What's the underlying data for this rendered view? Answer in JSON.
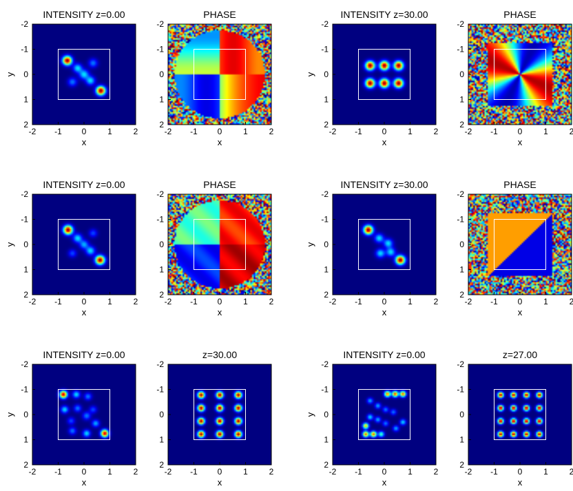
{
  "colors": {
    "background": "#000080",
    "colormap": "jet",
    "frame": "#ffffff",
    "axes": "#000000"
  },
  "chart_data": {
    "type": "heatmap",
    "axis_labels": {
      "x": "x",
      "y": "y"
    },
    "xlim": [
      -2,
      2
    ],
    "ylim": [
      -2,
      2
    ],
    "ticks": [
      "-2",
      "-1",
      "0",
      "1",
      "2"
    ],
    "rows": [
      {
        "panels": [
          {
            "kind": "intensity",
            "title": "INTENSITY z=0.00",
            "blobs": [
              {
                "x": -0.65,
                "y": -0.55,
                "amp": 1.0,
                "sigma": 0.12
              },
              {
                "x": -0.25,
                "y": -0.25,
                "amp": 0.35,
                "sigma": 0.12
              },
              {
                "x": 0.0,
                "y": 0.0,
                "amp": 0.35,
                "sigma": 0.13
              },
              {
                "x": 0.25,
                "y": 0.25,
                "amp": 0.35,
                "sigma": 0.12
              },
              {
                "x": -0.45,
                "y": 0.3,
                "amp": 0.25,
                "sigma": 0.12
              },
              {
                "x": 0.35,
                "y": -0.45,
                "amp": 0.25,
                "sigma": 0.12
              },
              {
                "x": 0.65,
                "y": 0.65,
                "amp": 1.0,
                "sigma": 0.12
              }
            ]
          },
          {
            "kind": "phase",
            "title": "PHASE",
            "style": "smooth-cross",
            "noise": "outer-corners"
          },
          {
            "kind": "intensity",
            "title": "INTENSITY z=30.00",
            "blobs": [
              {
                "x": -0.55,
                "y": -0.35,
                "amp": 1.0,
                "sigma": 0.12
              },
              {
                "x": 0.0,
                "y": -0.35,
                "amp": 1.0,
                "sigma": 0.12
              },
              {
                "x": 0.55,
                "y": -0.35,
                "amp": 1.0,
                "sigma": 0.12
              },
              {
                "x": -0.55,
                "y": 0.35,
                "amp": 1.0,
                "sigma": 0.12
              },
              {
                "x": 0.0,
                "y": 0.35,
                "amp": 1.0,
                "sigma": 0.12
              },
              {
                "x": 0.55,
                "y": 0.35,
                "amp": 1.0,
                "sigma": 0.12
              }
            ]
          },
          {
            "kind": "phase",
            "title": "PHASE",
            "style": "inner-square",
            "noise": "outside-square"
          }
        ]
      },
      {
        "panels": [
          {
            "kind": "intensity",
            "title": "INTENSITY z=0.00",
            "blobs": [
              {
                "x": -0.62,
                "y": -0.58,
                "amp": 1.0,
                "sigma": 0.12
              },
              {
                "x": -0.25,
                "y": -0.25,
                "amp": 0.35,
                "sigma": 0.12
              },
              {
                "x": 0.0,
                "y": 0.0,
                "amp": 0.3,
                "sigma": 0.12
              },
              {
                "x": 0.25,
                "y": 0.25,
                "amp": 0.35,
                "sigma": 0.12
              },
              {
                "x": -0.45,
                "y": 0.35,
                "amp": 0.2,
                "sigma": 0.11
              },
              {
                "x": 0.35,
                "y": -0.45,
                "amp": 0.2,
                "sigma": 0.11
              },
              {
                "x": 0.62,
                "y": 0.62,
                "amp": 1.0,
                "sigma": 0.12
              }
            ]
          },
          {
            "kind": "phase",
            "title": "PHASE",
            "style": "sharp-cross",
            "noise": "outer-corners"
          },
          {
            "kind": "intensity",
            "title": "INTENSITY z=30.00",
            "blobs": [
              {
                "x": -0.62,
                "y": -0.58,
                "amp": 1.0,
                "sigma": 0.12
              },
              {
                "x": -0.2,
                "y": -0.25,
                "amp": 0.35,
                "sigma": 0.12
              },
              {
                "x": 0.15,
                "y": -0.05,
                "amp": 0.35,
                "sigma": 0.12
              },
              {
                "x": -0.15,
                "y": 0.35,
                "amp": 0.35,
                "sigma": 0.12
              },
              {
                "x": 0.25,
                "y": 0.3,
                "amp": 0.35,
                "sigma": 0.12
              },
              {
                "x": 0.62,
                "y": 0.62,
                "amp": 1.0,
                "sigma": 0.12
              }
            ]
          },
          {
            "kind": "phase",
            "title": "PHASE",
            "style": "blue-yellow-square",
            "noise": "outside-square"
          }
        ]
      },
      {
        "panels": [
          {
            "kind": "intensity",
            "title": "INTENSITY z=0.00",
            "blobs": [
              {
                "x": -0.8,
                "y": -0.8,
                "amp": 0.95,
                "sigma": 0.1
              },
              {
                "x": -0.3,
                "y": -0.8,
                "amp": 0.35,
                "sigma": 0.1
              },
              {
                "x": 0.15,
                "y": -0.72,
                "amp": 0.25,
                "sigma": 0.1
              },
              {
                "x": -0.75,
                "y": -0.2,
                "amp": 0.35,
                "sigma": 0.1
              },
              {
                "x": -0.25,
                "y": -0.25,
                "amp": 0.25,
                "sigma": 0.1
              },
              {
                "x": 0.1,
                "y": 0.05,
                "amp": 0.25,
                "sigma": 0.11
              },
              {
                "x": 0.35,
                "y": -0.2,
                "amp": 0.2,
                "sigma": 0.1
              },
              {
                "x": -0.5,
                "y": 0.25,
                "amp": 0.2,
                "sigma": 0.1
              },
              {
                "x": 0.45,
                "y": 0.35,
                "amp": 0.3,
                "sigma": 0.1
              },
              {
                "x": -0.45,
                "y": 0.65,
                "amp": 0.25,
                "sigma": 0.1
              },
              {
                "x": 0.1,
                "y": 0.75,
                "amp": 0.35,
                "sigma": 0.1
              },
              {
                "x": 0.8,
                "y": 0.75,
                "amp": 0.95,
                "sigma": 0.1
              }
            ]
          },
          {
            "kind": "intensity",
            "title": "z=30.00",
            "blobs": [
              {
                "x": -0.72,
                "y": -0.78,
                "amp": 1.0,
                "sigma": 0.09
              },
              {
                "x": 0.0,
                "y": -0.78,
                "amp": 1.0,
                "sigma": 0.09
              },
              {
                "x": 0.72,
                "y": -0.78,
                "amp": 1.0,
                "sigma": 0.09
              },
              {
                "x": -0.72,
                "y": -0.26,
                "amp": 1.0,
                "sigma": 0.09
              },
              {
                "x": 0.0,
                "y": -0.26,
                "amp": 1.0,
                "sigma": 0.09
              },
              {
                "x": 0.72,
                "y": -0.26,
                "amp": 1.0,
                "sigma": 0.09
              },
              {
                "x": -0.72,
                "y": 0.26,
                "amp": 1.0,
                "sigma": 0.09
              },
              {
                "x": 0.0,
                "y": 0.26,
                "amp": 1.0,
                "sigma": 0.09
              },
              {
                "x": 0.72,
                "y": 0.26,
                "amp": 1.0,
                "sigma": 0.09
              },
              {
                "x": -0.72,
                "y": 0.78,
                "amp": 1.0,
                "sigma": 0.09
              },
              {
                "x": 0.0,
                "y": 0.78,
                "amp": 1.0,
                "sigma": 0.09
              },
              {
                "x": 0.72,
                "y": 0.78,
                "amp": 1.0,
                "sigma": 0.09
              }
            ]
          },
          {
            "kind": "intensity",
            "title": "INTENSITY z=0.00",
            "blobs": [
              {
                "x": 0.12,
                "y": -0.82,
                "amp": 0.8,
                "sigma": 0.08
              },
              {
                "x": 0.42,
                "y": -0.82,
                "amp": 0.85,
                "sigma": 0.08
              },
              {
                "x": 0.72,
                "y": -0.82,
                "amp": 0.8,
                "sigma": 0.08
              },
              {
                "x": -0.55,
                "y": -0.55,
                "amp": 0.3,
                "sigma": 0.08
              },
              {
                "x": -0.25,
                "y": -0.35,
                "amp": 0.3,
                "sigma": 0.08
              },
              {
                "x": 0.05,
                "y": -0.2,
                "amp": 0.25,
                "sigma": 0.08
              },
              {
                "x": 0.35,
                "y": -0.1,
                "amp": 0.25,
                "sigma": 0.08
              },
              {
                "x": -0.55,
                "y": 0.1,
                "amp": 0.35,
                "sigma": 0.08
              },
              {
                "x": -0.25,
                "y": 0.2,
                "amp": 0.3,
                "sigma": 0.08
              },
              {
                "x": 0.05,
                "y": 0.35,
                "amp": 0.25,
                "sigma": 0.08
              },
              {
                "x": -0.72,
                "y": 0.45,
                "amp": 0.7,
                "sigma": 0.08
              },
              {
                "x": -0.72,
                "y": 0.78,
                "amp": 0.8,
                "sigma": 0.08
              },
              {
                "x": -0.42,
                "y": 0.78,
                "amp": 0.8,
                "sigma": 0.08
              },
              {
                "x": -0.12,
                "y": 0.78,
                "amp": 0.45,
                "sigma": 0.08
              },
              {
                "x": 0.45,
                "y": 0.55,
                "amp": 0.3,
                "sigma": 0.08
              },
              {
                "x": 0.72,
                "y": 0.3,
                "amp": 0.35,
                "sigma": 0.08
              }
            ]
          },
          {
            "kind": "intensity",
            "title": "z=27.00",
            "blobs": [
              {
                "x": -0.75,
                "y": -0.78,
                "amp": 1.0,
                "sigma": 0.075
              },
              {
                "x": -0.25,
                "y": -0.78,
                "amp": 1.0,
                "sigma": 0.075
              },
              {
                "x": 0.25,
                "y": -0.78,
                "amp": 1.0,
                "sigma": 0.075
              },
              {
                "x": 0.75,
                "y": -0.78,
                "amp": 1.0,
                "sigma": 0.075
              },
              {
                "x": -0.75,
                "y": -0.26,
                "amp": 1.0,
                "sigma": 0.075
              },
              {
                "x": -0.25,
                "y": -0.26,
                "amp": 1.0,
                "sigma": 0.075
              },
              {
                "x": 0.25,
                "y": -0.26,
                "amp": 1.0,
                "sigma": 0.075
              },
              {
                "x": 0.75,
                "y": -0.26,
                "amp": 1.0,
                "sigma": 0.075
              },
              {
                "x": -0.75,
                "y": 0.26,
                "amp": 1.0,
                "sigma": 0.075
              },
              {
                "x": -0.25,
                "y": 0.26,
                "amp": 1.0,
                "sigma": 0.075
              },
              {
                "x": 0.25,
                "y": 0.26,
                "amp": 1.0,
                "sigma": 0.075
              },
              {
                "x": 0.75,
                "y": 0.26,
                "amp": 1.0,
                "sigma": 0.075
              },
              {
                "x": -0.75,
                "y": 0.78,
                "amp": 1.0,
                "sigma": 0.075
              },
              {
                "x": -0.25,
                "y": 0.78,
                "amp": 1.0,
                "sigma": 0.075
              },
              {
                "x": 0.25,
                "y": 0.78,
                "amp": 1.0,
                "sigma": 0.075
              },
              {
                "x": 0.75,
                "y": 0.78,
                "amp": 1.0,
                "sigma": 0.075
              }
            ]
          }
        ]
      }
    ]
  }
}
